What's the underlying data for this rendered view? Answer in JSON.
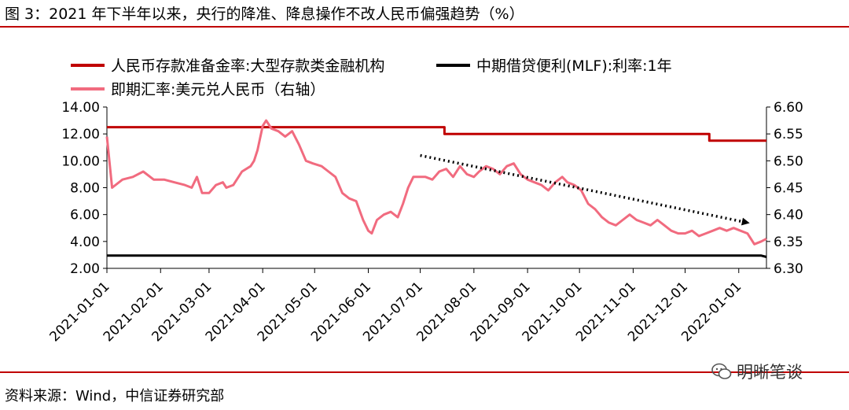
{
  "figure": {
    "title": "图 3：2021 年下半年以来，央行的降准、降息操作不改人民币偏强趋势（%）",
    "source": "资料来源：Wind，中信证券研究部",
    "watermark": "明晰笔谈"
  },
  "chart_data": {
    "type": "line",
    "title": "",
    "xlabel": "",
    "ylabel": "",
    "x_ticks": [
      "2021-01-01",
      "2021-02-01",
      "2021-03-01",
      "2021-04-01",
      "2021-05-01",
      "2021-06-01",
      "2021-07-01",
      "2021-08-01",
      "2021-09-01",
      "2021-10-01",
      "2021-11-01",
      "2021-12-01",
      "2022-01-01"
    ],
    "x_range": [
      "2021-01-01",
      "2022-01-17"
    ],
    "y_left": {
      "range": [
        2,
        14
      ],
      "ticks": [
        "2.00",
        "4.00",
        "6.00",
        "8.00",
        "10.00",
        "12.00",
        "14.00"
      ]
    },
    "y_right": {
      "range": [
        6.3,
        6.6
      ],
      "ticks": [
        "6.30",
        "6.35",
        "6.40",
        "6.45",
        "6.50",
        "6.55",
        "6.60"
      ]
    },
    "grid": false,
    "legend_position": "top",
    "series": [
      {
        "name": "人民币存款准备金率:大型存款类金融机构",
        "axis": "left",
        "color": "#c00000",
        "points": [
          [
            "2021-01-01",
            12.5
          ],
          [
            "2021-07-15",
            12.5
          ],
          [
            "2021-07-15",
            12.0
          ],
          [
            "2021-12-15",
            12.0
          ],
          [
            "2021-12-15",
            11.5
          ],
          [
            "2022-01-17",
            11.5
          ]
        ]
      },
      {
        "name": "中期借贷便利(MLF):利率:1年",
        "axis": "left",
        "color": "#000000",
        "points": [
          [
            "2021-01-01",
            2.95
          ],
          [
            "2022-01-14",
            2.95
          ],
          [
            "2022-01-17",
            2.85
          ]
        ]
      },
      {
        "name": "即期汇率:美元兑人民币（右轴）",
        "axis": "right",
        "color": "#f16b7f",
        "points": [
          [
            "2021-01-01",
            6.545
          ],
          [
            "2021-01-04",
            6.45
          ],
          [
            "2021-01-10",
            6.465
          ],
          [
            "2021-01-16",
            6.47
          ],
          [
            "2021-01-22",
            6.48
          ],
          [
            "2021-01-28",
            6.465
          ],
          [
            "2021-02-03",
            6.465
          ],
          [
            "2021-02-09",
            6.46
          ],
          [
            "2021-02-15",
            6.455
          ],
          [
            "2021-02-19",
            6.45
          ],
          [
            "2021-02-22",
            6.47
          ],
          [
            "2021-02-25",
            6.44
          ],
          [
            "2021-03-01",
            6.44
          ],
          [
            "2021-03-05",
            6.455
          ],
          [
            "2021-03-09",
            6.46
          ],
          [
            "2021-03-11",
            6.45
          ],
          [
            "2021-03-15",
            6.455
          ],
          [
            "2021-03-20",
            6.48
          ],
          [
            "2021-03-25",
            6.49
          ],
          [
            "2021-03-27",
            6.5
          ],
          [
            "2021-03-29",
            6.52
          ],
          [
            "2021-04-01",
            6.565
          ],
          [
            "2021-04-03",
            6.575
          ],
          [
            "2021-04-06",
            6.56
          ],
          [
            "2021-04-10",
            6.555
          ],
          [
            "2021-04-14",
            6.545
          ],
          [
            "2021-04-18",
            6.555
          ],
          [
            "2021-04-22",
            6.53
          ],
          [
            "2021-04-26",
            6.5
          ],
          [
            "2021-04-30",
            6.495
          ],
          [
            "2021-05-05",
            6.49
          ],
          [
            "2021-05-09",
            6.48
          ],
          [
            "2021-05-13",
            6.47
          ],
          [
            "2021-05-17",
            6.44
          ],
          [
            "2021-05-21",
            6.43
          ],
          [
            "2021-05-25",
            6.425
          ],
          [
            "2021-05-29",
            6.39
          ],
          [
            "2021-06-01",
            6.37
          ],
          [
            "2021-06-03",
            6.365
          ],
          [
            "2021-06-06",
            6.39
          ],
          [
            "2021-06-10",
            6.4
          ],
          [
            "2021-06-14",
            6.405
          ],
          [
            "2021-06-18",
            6.395
          ],
          [
            "2021-06-21",
            6.42
          ],
          [
            "2021-06-24",
            6.45
          ],
          [
            "2021-06-27",
            6.47
          ],
          [
            "2021-06-30",
            6.47
          ],
          [
            "2021-07-04",
            6.47
          ],
          [
            "2021-07-08",
            6.465
          ],
          [
            "2021-07-12",
            6.48
          ],
          [
            "2021-07-16",
            6.485
          ],
          [
            "2021-07-20",
            6.47
          ],
          [
            "2021-07-24",
            6.49
          ],
          [
            "2021-07-28",
            6.475
          ],
          [
            "2021-08-01",
            6.47
          ],
          [
            "2021-08-04",
            6.48
          ],
          [
            "2021-08-08",
            6.49
          ],
          [
            "2021-08-12",
            6.485
          ],
          [
            "2021-08-16",
            6.475
          ],
          [
            "2021-08-20",
            6.49
          ],
          [
            "2021-08-24",
            6.495
          ],
          [
            "2021-08-28",
            6.475
          ],
          [
            "2021-09-01",
            6.465
          ],
          [
            "2021-09-05",
            6.46
          ],
          [
            "2021-09-09",
            6.455
          ],
          [
            "2021-09-13",
            6.445
          ],
          [
            "2021-09-17",
            6.46
          ],
          [
            "2021-09-21",
            6.47
          ],
          [
            "2021-09-24",
            6.46
          ],
          [
            "2021-09-28",
            6.455
          ],
          [
            "2021-10-02",
            6.445
          ],
          [
            "2021-10-06",
            6.42
          ],
          [
            "2021-10-10",
            6.41
          ],
          [
            "2021-10-14",
            6.395
          ],
          [
            "2021-10-18",
            6.385
          ],
          [
            "2021-10-22",
            6.38
          ],
          [
            "2021-10-26",
            6.39
          ],
          [
            "2021-10-30",
            6.4
          ],
          [
            "2021-11-03",
            6.39
          ],
          [
            "2021-11-07",
            6.385
          ],
          [
            "2021-11-11",
            6.38
          ],
          [
            "2021-11-15",
            6.39
          ],
          [
            "2021-11-19",
            6.38
          ],
          [
            "2021-11-23",
            6.37
          ],
          [
            "2021-11-27",
            6.365
          ],
          [
            "2021-12-01",
            6.365
          ],
          [
            "2021-12-05",
            6.37
          ],
          [
            "2021-12-09",
            6.36
          ],
          [
            "2021-12-13",
            6.365
          ],
          [
            "2021-12-17",
            6.37
          ],
          [
            "2021-12-21",
            6.375
          ],
          [
            "2021-12-25",
            6.37
          ],
          [
            "2021-12-29",
            6.375
          ],
          [
            "2022-01-02",
            6.37
          ],
          [
            "2022-01-06",
            6.365
          ],
          [
            "2022-01-10",
            6.345
          ],
          [
            "2022-01-14",
            6.35
          ],
          [
            "2022-01-17",
            6.355
          ]
        ]
      }
    ],
    "annotations": [
      {
        "type": "trend-arrow",
        "style": "dotted",
        "axis": "right",
        "from": [
          "2021-07-01",
          6.51
        ],
        "to": [
          "2022-01-06",
          6.385
        ]
      }
    ]
  }
}
